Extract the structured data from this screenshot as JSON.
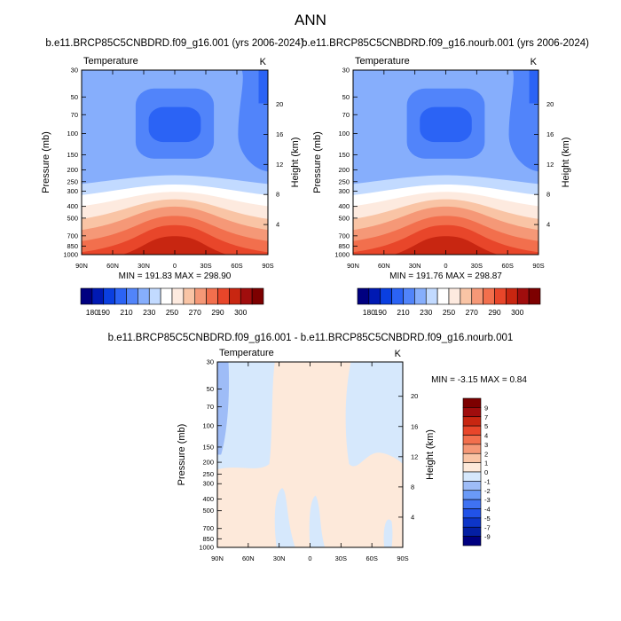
{
  "title": "ANN",
  "colors": {
    "ramp": [
      "#000080",
      "#0019b3",
      "#0a3fe0",
      "#2b63f5",
      "#5184fa",
      "#86aefc",
      "#c2daff",
      "#ffffff",
      "#fdeadf",
      "#f9c4a5",
      "#f59877",
      "#f26f4d",
      "#e8462a",
      "#c82611",
      "#a00d0d",
      "#7d0000"
    ],
    "diff_bg": "#d6e8fc",
    "diff_pos": "#fde9da",
    "diff_neg_strong": "#9ebcf7"
  },
  "chart_data": [
    {
      "type": "heatmap",
      "panel": "top-left",
      "title": "b.e11.BRCP85C5CNBDRD.f09_g16.001 (yrs 2006-2024)",
      "left_label": "Temperature",
      "right_label": "K",
      "ylabel": "Pressure (mb)",
      "ylabel_right": "Height (km)",
      "x_ticks": [
        "90N",
        "60N",
        "30N",
        "0",
        "30S",
        "60S",
        "90S"
      ],
      "y_ticks": [
        30,
        50,
        70,
        100,
        150,
        200,
        250,
        300,
        400,
        500,
        700,
        850,
        1000
      ],
      "right_ticks": [
        4,
        8,
        12,
        16,
        20
      ],
      "ylim": [
        1000,
        30
      ],
      "yscale": "log",
      "min": 191.83,
      "max": 298.9,
      "stats_text": "MIN = 191.83  MAX = 298.90",
      "levels": [
        180,
        190,
        200,
        210,
        220,
        230,
        240,
        250,
        260,
        270,
        280,
        290,
        300
      ],
      "colorbar_labels": [
        "180",
        "190",
        "210",
        "230",
        "250",
        "270",
        "290",
        "300"
      ]
    },
    {
      "type": "heatmap",
      "panel": "top-right",
      "title": "b.e11.BRCP85C5CNBDRD.f09_g16.nourb.001 (yrs 2006-2024)",
      "left_label": "Temperature",
      "right_label": "K",
      "ylabel": "Pressure (mb)",
      "ylabel_right": "Height (km)",
      "x_ticks": [
        "90N",
        "60N",
        "30N",
        "0",
        "30S",
        "60S",
        "90S"
      ],
      "y_ticks": [
        30,
        50,
        70,
        100,
        150,
        200,
        250,
        300,
        400,
        500,
        700,
        850,
        1000
      ],
      "right_ticks": [
        4,
        8,
        12,
        16,
        20
      ],
      "ylim": [
        1000,
        30
      ],
      "yscale": "log",
      "min": 191.76,
      "max": 298.87,
      "stats_text": "MIN = 191.76  MAX = 298.87",
      "levels": [
        180,
        190,
        200,
        210,
        220,
        230,
        240,
        250,
        260,
        270,
        280,
        290,
        300
      ],
      "colorbar_labels": [
        "180",
        "190",
        "210",
        "230",
        "250",
        "270",
        "290",
        "300"
      ]
    },
    {
      "type": "heatmap",
      "panel": "bottom",
      "title": "b.e11.BRCP85C5CNBDRD.f09_g16.001 - b.e11.BRCP85C5CNBDRD.f09_g16.nourb.001",
      "left_label": "Temperature",
      "right_label": "K",
      "ylabel": "Pressure (mb)",
      "ylabel_right": "Height (km)",
      "x_ticks": [
        "90N",
        "60N",
        "30N",
        "0",
        "30S",
        "60S",
        "90S"
      ],
      "y_ticks": [
        30,
        50,
        70,
        100,
        150,
        200,
        250,
        300,
        400,
        500,
        700,
        850,
        1000
      ],
      "right_ticks": [
        4,
        8,
        12,
        16,
        20
      ],
      "ylim": [
        1000,
        30
      ],
      "yscale": "log",
      "min": -3.15,
      "max": 0.84,
      "stats_text": "MIN = -3.15  MAX =  0.84",
      "colorbar_labels": [
        "9",
        "7",
        "5",
        "4",
        "3",
        "2",
        "1",
        "0",
        "-1",
        "-2",
        "-3",
        "-4",
        "-5",
        "-7",
        "-9"
      ]
    }
  ]
}
